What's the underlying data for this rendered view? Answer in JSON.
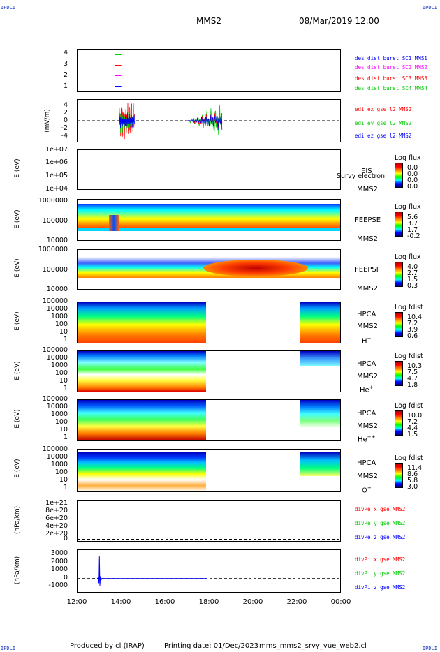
{
  "header": {
    "corner_label": "IPDLI",
    "spacecraft": "MMS2",
    "date_time": "08/Mar/2019 12:00"
  },
  "footer": {
    "produced_by": "Produced by cl (IRAP)",
    "printing_date": "Printing date: 01/Dec/2023",
    "file_name": "mms_mms2_srvy_vue_web2.cl"
  },
  "chart_data": [
    {
      "type": "line",
      "id": "burst",
      "yticks": [
        "1",
        "2",
        "3",
        "4"
      ],
      "ylim": [
        0.5,
        4.5
      ],
      "legend": [
        "des dist burst SC1 MMS1",
        "des dist burst SC2 MMS2",
        "des dist burst SC3 MMS3",
        "des dist burst SC4 MMS4"
      ],
      "colors": [
        "#0000ff",
        "#ff00ff",
        "#ff0000",
        "#00cc00"
      ],
      "series": [
        {
          "y": 4,
          "x": [
            13.7,
            14.0
          ],
          "color": "#00cc00"
        },
        {
          "y": 3,
          "x": [
            13.7,
            14.0
          ],
          "color": "#ff0000"
        },
        {
          "y": 2,
          "x": [
            13.7,
            14.0
          ],
          "color": "#ff00ff"
        },
        {
          "y": 1,
          "x": [
            13.7,
            14.0
          ],
          "color": "#0000ff"
        }
      ]
    },
    {
      "type": "line",
      "id": "efield",
      "ylabel": "(mV/m)",
      "yticks": [
        "4",
        "2",
        "0",
        "-2",
        "-4"
      ],
      "ylim": [
        -5,
        5
      ],
      "legend": [
        "edi ex gse l2 MMS2",
        "edi ey gse l2 MMS2",
        "edi ez gse l2 MMS2"
      ],
      "colors": [
        "#ff0000",
        "#00cc00",
        "#0000ff"
      ]
    },
    {
      "type": "heatmap",
      "id": "eis",
      "ylabel": "E (eV)",
      "yticks": [
        "1e+07",
        "1e+06",
        "1e+05",
        "1e+04"
      ],
      "instrument": [
        "EIS",
        "MMS2"
      ],
      "overlay_label": "Survy electron tof",
      "colorbar": {
        "title": "Log flux",
        "values": [
          "0.0",
          "0.0",
          "0.0",
          "0.0"
        ]
      }
    },
    {
      "type": "heatmap",
      "id": "feepse",
      "ylabel": "E (eV)",
      "yticks": [
        "1000000",
        "100000",
        "10000"
      ],
      "instrument": [
        "FEEPSE",
        "MMS2"
      ],
      "colorbar": {
        "title": "Log flux",
        "values": [
          "5.6",
          "3.7",
          "1.7",
          "-0.2"
        ]
      }
    },
    {
      "type": "heatmap",
      "id": "feepsi",
      "ylabel": "E (eV)",
      "yticks": [
        "1000000",
        "100000",
        "10000"
      ],
      "instrument": [
        "FEEPSI",
        "MMS2"
      ],
      "colorbar": {
        "title": "Log flux",
        "values": [
          "4.0",
          "2.7",
          "1.5",
          "0.3"
        ]
      }
    },
    {
      "type": "heatmap",
      "id": "hpca_h",
      "ylabel": "E (eV)",
      "yticks": [
        "100000",
        "10000",
        "1000",
        "100",
        "10",
        "1"
      ],
      "instrument": [
        "HPCA",
        "MMS2",
        "H"
      ],
      "species_sup": "+",
      "colorbar": {
        "title": "Log fdist",
        "values": [
          "10.4",
          "7.2",
          "3.9",
          "0.6"
        ]
      }
    },
    {
      "type": "heatmap",
      "id": "hpca_he",
      "ylabel": "E (eV)",
      "yticks": [
        "100000",
        "10000",
        "1000",
        "100",
        "10",
        "1"
      ],
      "instrument": [
        "HPCA",
        "MMS2",
        "He"
      ],
      "species_sup": "+",
      "colorbar": {
        "title": "Log fdist",
        "values": [
          "10.3",
          "7.5",
          "4.7",
          "1.8"
        ]
      }
    },
    {
      "type": "heatmap",
      "id": "hpca_hepp",
      "ylabel": "E (eV)",
      "yticks": [
        "100000",
        "10000",
        "1000",
        "100",
        "10",
        "1"
      ],
      "instrument": [
        "HPCA",
        "MMS2",
        "He"
      ],
      "species_sup": "++",
      "colorbar": {
        "title": "Log fdist",
        "values": [
          "10.0",
          "7.2",
          "4.4",
          "1.5"
        ]
      }
    },
    {
      "type": "heatmap",
      "id": "hpca_o",
      "ylabel": "E (eV)",
      "yticks": [
        "100000",
        "10000",
        "1000",
        "100",
        "10",
        "1"
      ],
      "instrument": [
        "HPCA",
        "MMS2",
        "O"
      ],
      "species_sup": "+",
      "colorbar": {
        "title": "Log fdist",
        "values": [
          "11.4",
          "8.6",
          "5.8",
          "3.0"
        ]
      }
    },
    {
      "type": "line",
      "id": "divpe",
      "ylabel": "(nPa/km)",
      "yticks": [
        "1e+21",
        "8e+20",
        "6e+20",
        "4e+20",
        "2e+20",
        "0"
      ],
      "ylim": [
        -5e+19,
        1.1e+21
      ],
      "legend": [
        "divPe x gse MMS2",
        "divPe y gse MMS2",
        "divPe z gse MMS2"
      ],
      "colors": [
        "#ff0000",
        "#00cc00",
        "#0000ff"
      ]
    },
    {
      "type": "line",
      "id": "divpi",
      "ylabel": "(nPa/km)",
      "yticks": [
        "3000",
        "2000",
        "1000",
        "0",
        "-1000"
      ],
      "ylim": [
        -1700,
        3600
      ],
      "legend": [
        "divPi x gse MMS2",
        "divPi y gse MMS2",
        "divPi z gse MMS2"
      ],
      "colors": [
        "#ff0000",
        "#00cc00",
        "#0000ff"
      ],
      "series": [
        {
          "name": "divPi z gse MMS2",
          "color": "#0000ff",
          "x": [
            12.9,
            12.95,
            12.98,
            13.0,
            13.02,
            13.05,
            13.08,
            13.1,
            13.2,
            14.0,
            16.0,
            17.9
          ],
          "y": [
            0,
            100,
            -600,
            2800,
            -900,
            300,
            -200,
            0,
            0,
            0,
            0,
            0
          ]
        }
      ]
    }
  ],
  "x_axis": {
    "ticks": [
      "12:00",
      "14:00",
      "16:00",
      "18:00",
      "20:00",
      "22:00",
      "00:00"
    ],
    "range_hours": [
      12,
      24
    ]
  }
}
